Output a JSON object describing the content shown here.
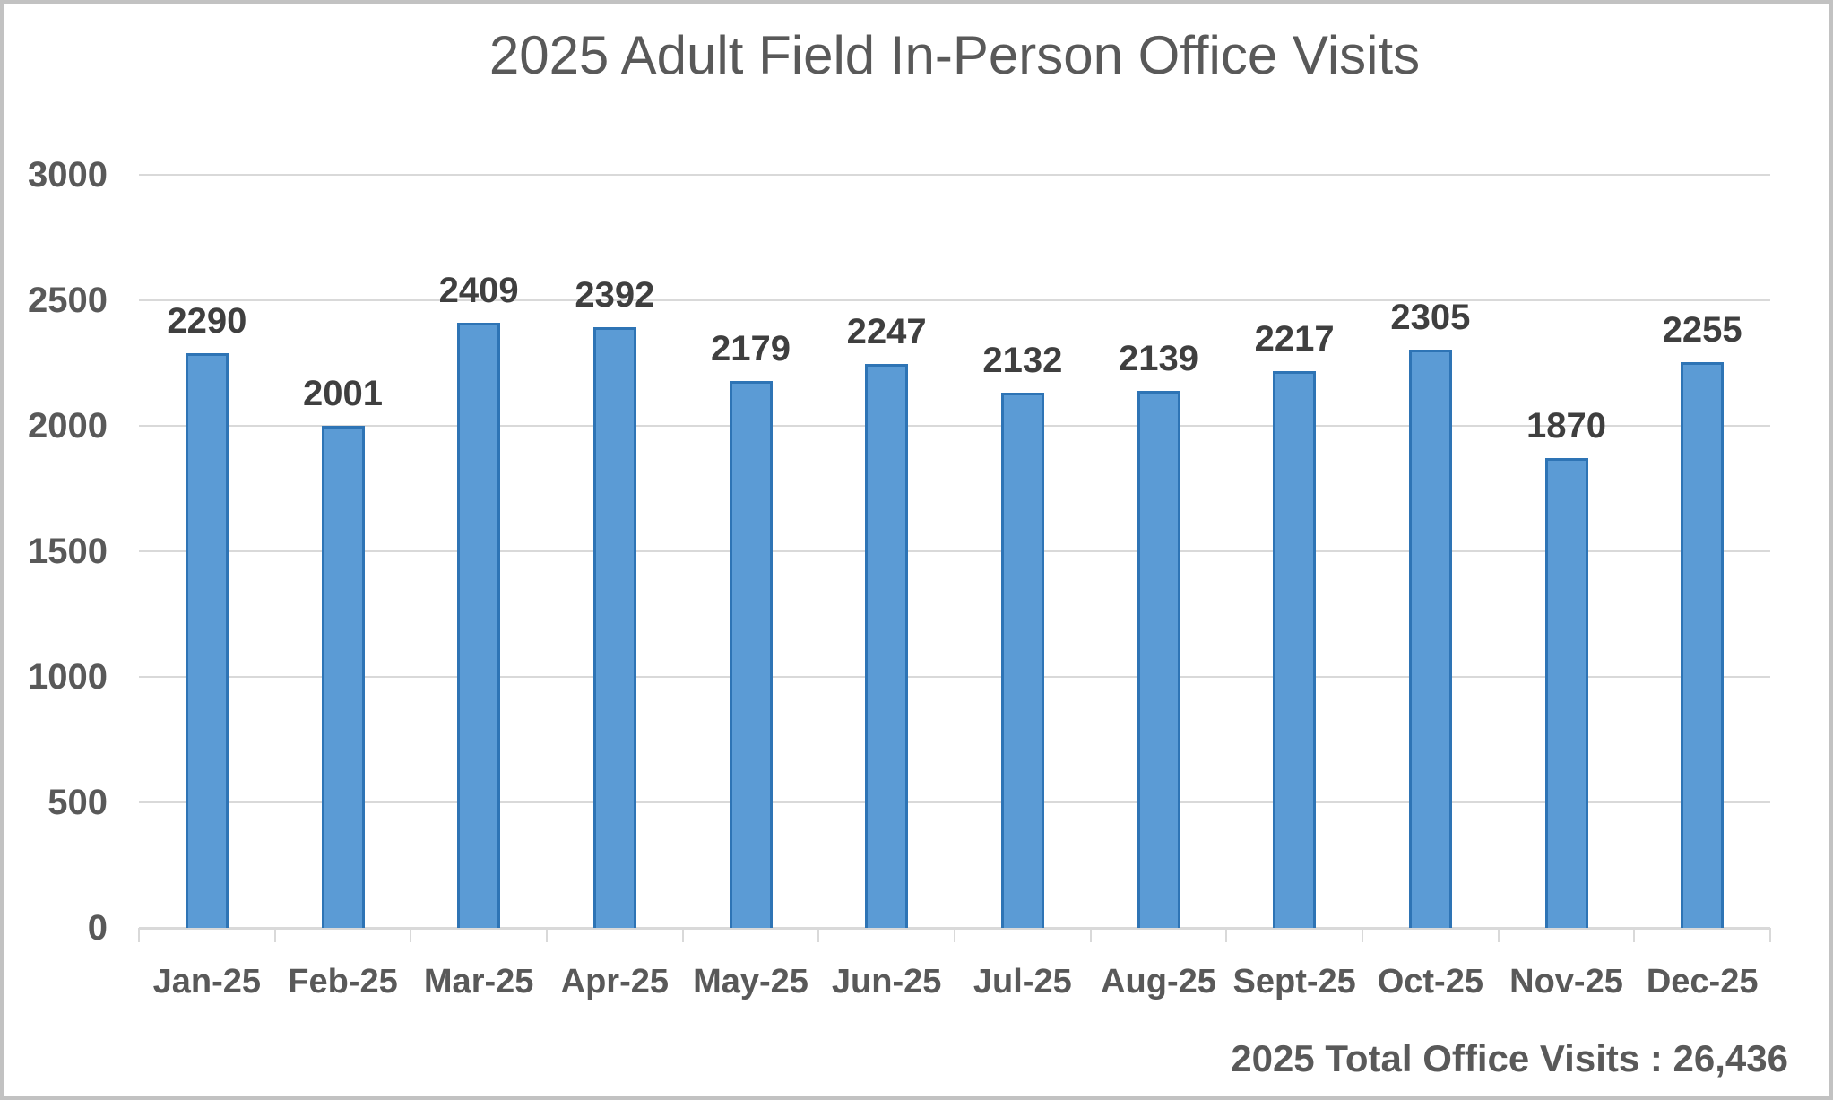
{
  "chart_data": {
    "type": "bar",
    "title": "2025 Adult Field In-Person Office Visits",
    "categories": [
      "Jan-25",
      "Feb-25",
      "Mar-25",
      "Apr-25",
      "May-25",
      "Jun-25",
      "Jul-25",
      "Aug-25",
      "Sept-25",
      "Oct-25",
      "Nov-25",
      "Dec-25"
    ],
    "values": [
      2290,
      2001,
      2409,
      2392,
      2179,
      2247,
      2132,
      2139,
      2217,
      2305,
      1870,
      2255
    ],
    "data_labels": [
      2290,
      2001,
      2409,
      2392,
      2179,
      2247,
      2132,
      2139,
      2217,
      2305,
      1870,
      2255
    ],
    "xlabel": "",
    "ylabel": "",
    "ylim": [
      0,
      3000
    ],
    "yticks": [
      0,
      500,
      1000,
      1500,
      2000,
      2500,
      3000
    ],
    "grid": true,
    "legend": false,
    "footer": "2025 Total Office Visits : 26,436",
    "total_visits": "26,436",
    "colors": {
      "bar_fill": "#5B9BD5",
      "bar_border": "#2E74B5",
      "gridline": "#D9D9D9",
      "axis_line": "#D9D9D9",
      "title_text": "#595959",
      "axis_tick_text": "#595959",
      "data_label_text": "#3F3F3F"
    }
  }
}
